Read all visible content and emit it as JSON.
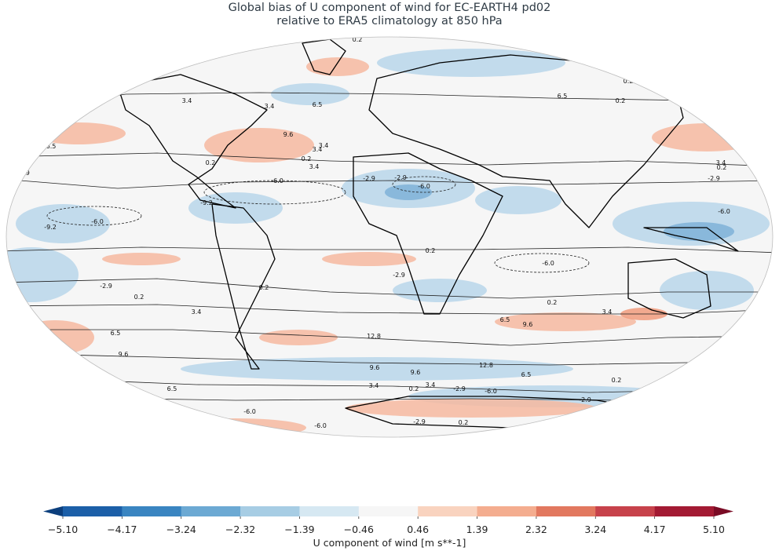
{
  "title": {
    "line1": "Global bias of U component of wind for EC-EARTH4 pd02",
    "line2": "relative to ERA5 climatology at 850 hPa"
  },
  "colorbar": {
    "label": "U component of wind [m s**-1]",
    "ticks": [
      "−5.10",
      "−4.17",
      "−3.24",
      "−2.32",
      "−1.39",
      "−0.46",
      "0.46",
      "1.39",
      "2.32",
      "3.24",
      "4.17",
      "5.10"
    ],
    "colors": [
      "#1c5fa8",
      "#3a85c1",
      "#6ca9d3",
      "#a7cde4",
      "#d6e8f2",
      "#f6f6f6",
      "#f9d3bf",
      "#f4ad8f",
      "#e2785f",
      "#c7424b",
      "#a31a33"
    ],
    "under_color": "#0c3f7d",
    "over_color": "#7a0b25"
  },
  "map": {
    "projection": "Robinson",
    "contour_labels": [
      "0.2",
      "3.4",
      "6.5",
      "9.6",
      "12.8",
      "-2.9",
      "-6.0",
      "-9.2"
    ],
    "ocean_color": "#f6f6f6",
    "positive_bias_color": "#f6b9a0",
    "negative_bias_color": "#b9d6ea",
    "coast_color": "#000000"
  }
}
